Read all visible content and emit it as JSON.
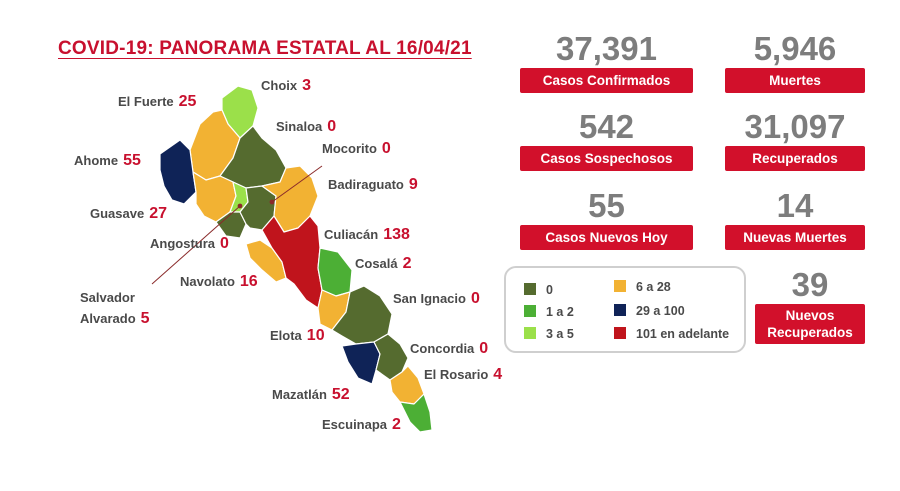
{
  "title": "COVID-19: PANORAMA ESTATAL AL 16/04/21",
  "stats": {
    "confirmados": {
      "value": "37,391",
      "label": "Casos Confirmados"
    },
    "muertes": {
      "value": "5,946",
      "label": "Muertes"
    },
    "sospechosos": {
      "value": "542",
      "label": "Casos Sospechosos"
    },
    "recuperados": {
      "value": "31,097",
      "label": "Recuperados"
    },
    "nuevos_hoy": {
      "value": "55",
      "label": "Casos Nuevos Hoy"
    },
    "nuevas_muertes": {
      "value": "14",
      "label": "Nuevas Muertes"
    },
    "nuevos_recuperados": {
      "value": "39",
      "label_line1": "Nuevos",
      "label_line2": "Recuperados"
    }
  },
  "municipalities": {
    "choix": {
      "name": "Choix",
      "cases": "3"
    },
    "el_fuerte": {
      "name": "El Fuerte",
      "cases": "25"
    },
    "sinaloa": {
      "name": "Sinaloa",
      "cases": "0"
    },
    "mocorito": {
      "name": "Mocorito",
      "cases": "0"
    },
    "ahome": {
      "name": "Ahome",
      "cases": "55"
    },
    "badiraguato": {
      "name": "Badiraguato",
      "cases": "9"
    },
    "guasave": {
      "name": "Guasave",
      "cases": "27"
    },
    "angostura": {
      "name": "Angostura",
      "cases": "0"
    },
    "culiacan": {
      "name": "Culiacán",
      "cases": "138"
    },
    "cosala": {
      "name": "Cosalá",
      "cases": "2"
    },
    "navolato": {
      "name": "Navolato",
      "cases": "16"
    },
    "salvador_alvarado": {
      "name_line1": "Salvador",
      "name_line2": "Alvarado",
      "cases": "5"
    },
    "san_ignacio": {
      "name": "San Ignacio",
      "cases": "0"
    },
    "elota": {
      "name": "Elota",
      "cases": "10"
    },
    "concordia": {
      "name": "Concordia",
      "cases": "0"
    },
    "el_rosario": {
      "name": "El Rosario",
      "cases": "4"
    },
    "mazatlan": {
      "name": "Mazatlán",
      "cases": "52"
    },
    "escuinapa": {
      "name": "Escuinapa",
      "cases": "2"
    }
  },
  "legend": [
    {
      "label": "0",
      "color": "#556b2f"
    },
    {
      "label": "1 a 2",
      "color": "#4caf35"
    },
    {
      "label": "3 a 5",
      "color": "#9be04a"
    },
    {
      "label": "6 a 28",
      "color": "#f2b233"
    },
    {
      "label": "29 a 100",
      "color": "#0f2357"
    },
    {
      "label": "101 en adelante",
      "color": "#c0141c"
    }
  ],
  "colors": {
    "accent": "#c8102e",
    "zero": "#556b2f",
    "one_two": "#4caf35",
    "three_five": "#9be04a",
    "six_28": "#f2b233",
    "r29_100": "#0f2357",
    "r101_plus": "#c0141c"
  }
}
